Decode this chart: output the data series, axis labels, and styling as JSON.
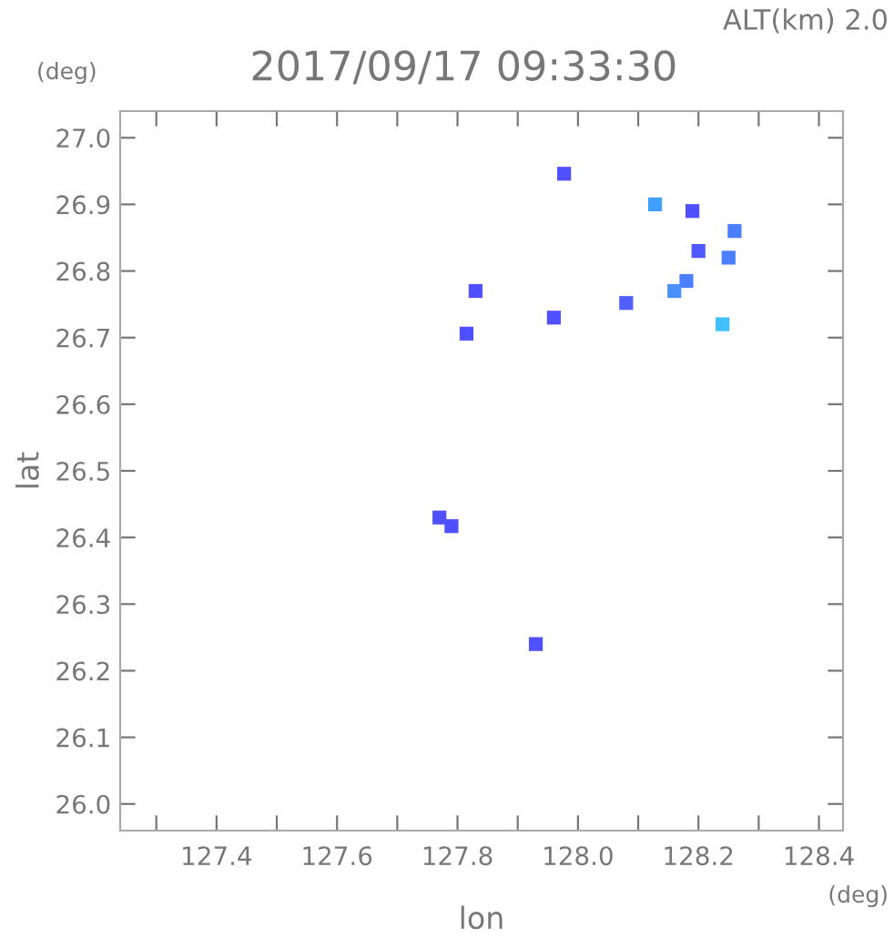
{
  "chart_data": {
    "type": "scatter",
    "title": "2017/09/17 09:33:30",
    "xlabel": "lon",
    "ylabel": "lat",
    "annotations": [
      "ALT(km) 2.0",
      "(deg)",
      "(deg)"
    ],
    "marker": "square",
    "grid": false,
    "legend": false,
    "xlim": [
      127.24,
      128.44
    ],
    "ylim": [
      25.96,
      27.04
    ],
    "xticks": [
      {
        "value": 127.3,
        "label": null
      },
      127.4,
      {
        "value": 127.5,
        "label": null
      },
      127.6,
      {
        "value": 127.7,
        "label": null
      },
      127.8,
      {
        "value": 127.9,
        "label": null
      },
      {
        "value": 128,
        "label": "128.0"
      },
      {
        "value": 128.1,
        "label": null
      },
      128.2,
      {
        "value": 128.3,
        "label": null
      },
      128.4
    ],
    "yticks": [
      {
        "value": 26,
        "label": "26.0"
      },
      26.1,
      26.2,
      26.3,
      26.4,
      26.5,
      26.6,
      26.7,
      26.8,
      26.9,
      {
        "value": 27,
        "label": "27.0"
      }
    ],
    "series": [
      {
        "x": [
          127.977,
          128.128,
          128.19,
          128.26,
          128.2,
          128.25,
          128.18,
          128.16,
          128.08,
          128.24,
          127.96,
          127.83,
          127.815,
          127.77,
          127.79,
          127.93
        ],
        "values": [
          26.946,
          26.9,
          26.89,
          26.86,
          26.83,
          26.82,
          26.785,
          26.77,
          26.752,
          26.72,
          26.73,
          26.77,
          26.706,
          26.43,
          26.417,
          26.24
        ],
        "colors": [
          "#5050ff",
          "#40a0ff",
          "#5050ff",
          "#4a80ff",
          "#5058ff",
          "#4a80ff",
          "#4a80ff",
          "#4a90ff",
          "#5060ff",
          "#40c0ff",
          "#5050ff",
          "#5050ff",
          "#5050ff",
          "#5050ff",
          "#5050ff",
          "#5050ff"
        ]
      }
    ]
  }
}
